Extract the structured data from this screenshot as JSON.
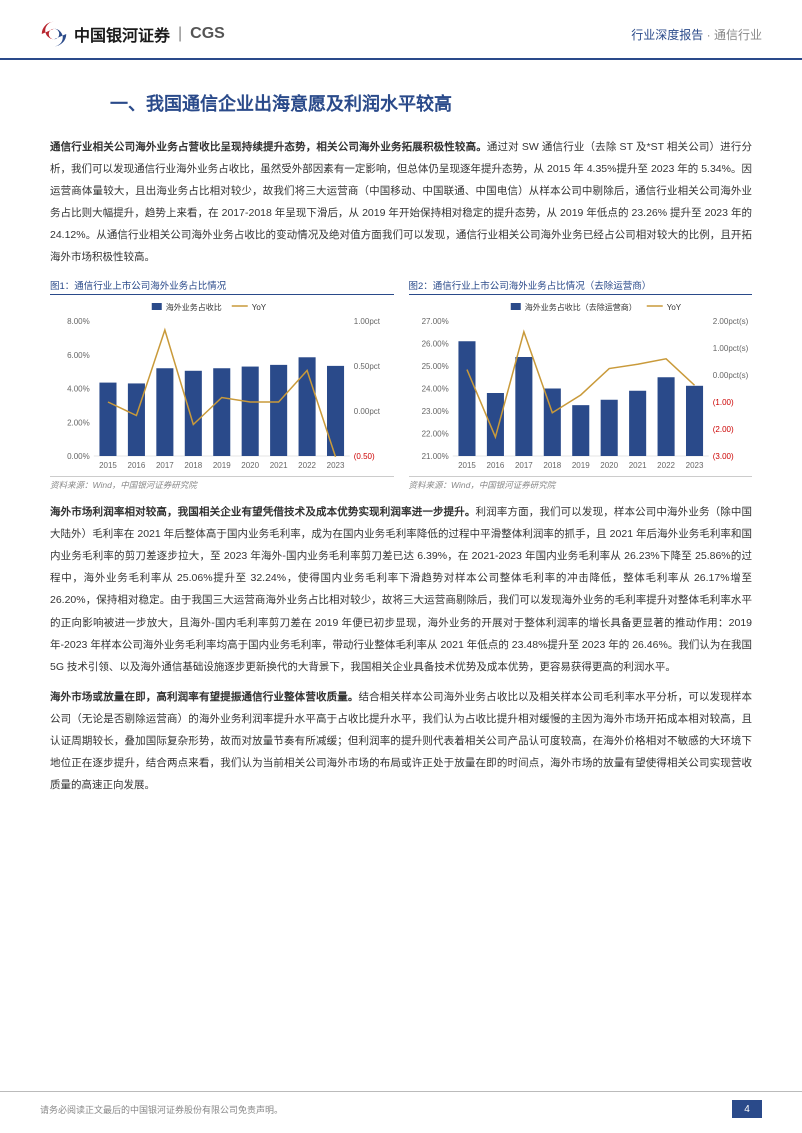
{
  "header": {
    "logo_cn": "中国银河证券",
    "logo_en": "CGS",
    "right_main": "行业深度报告",
    "right_sub": "· 通信行业"
  },
  "section_title": "一、我国通信企业出海意愿及利润水平较高",
  "para1_strong": "通信行业相关公司海外业务占营收比呈现持续提升态势，相关公司海外业务拓展积极性较高。",
  "para1_body": "通过对 SW 通信行业（去除 ST 及*ST 相关公司）进行分析，我们可以发现通信行业海外业务占收比，虽然受外部因素有一定影响，但总体仍呈现逐年提升态势，从 2015 年 4.35%提升至 2023 年的 5.34%。因运营商体量较大，且出海业务占比相对较少，故我们将三大运营商（中国移动、中国联通、中国电信）从样本公司中剔除后，通信行业相关公司海外业务占比则大幅提升，趋势上来看，在 2017-2018 年呈现下滑后，从 2019 年开始保持相对稳定的提升态势，从 2019 年低点的 23.26% 提升至 2023 年的 24.12%。从通信行业相关公司海外业务占收比的变动情况及绝对值方面我们可以发现，通信行业相关公司海外业务已经占公司相对较大的比例，且开拓海外市场积极性较高。",
  "chart1": {
    "title": "图1：通信行业上市公司海外业务占比情况",
    "legend_bar": "海外业务占收比",
    "legend_line": "YoY",
    "categories": [
      "2015",
      "2016",
      "2017",
      "2018",
      "2019",
      "2020",
      "2021",
      "2022",
      "2023"
    ],
    "bar_values": [
      4.35,
      4.3,
      5.2,
      5.05,
      5.2,
      5.3,
      5.4,
      5.85,
      5.34
    ],
    "yoy_values": [
      0.1,
      -0.05,
      0.9,
      -0.15,
      0.15,
      0.1,
      0.1,
      0.45,
      -0.51
    ],
    "y1_min": 0,
    "y1_max": 8,
    "y1_step": 2,
    "y1_fmt": "pct",
    "y2_min": -0.5,
    "y2_max": 1.0,
    "y2_step": 0.5,
    "y2_unit": "pct",
    "bar_color": "#2a4a8a",
    "line_color": "#c99a3a",
    "source": "资料来源：Wind，中国银河证券研究院"
  },
  "chart2": {
    "title": "图2：通信行业上市公司海外业务占比情况（去除运营商）",
    "legend_bar": "海外业务占收比（去除运营商）",
    "legend_line": "YoY",
    "categories": [
      "2015",
      "2016",
      "2017",
      "2018",
      "2019",
      "2020",
      "2021",
      "2022",
      "2023"
    ],
    "bar_values": [
      26.1,
      23.8,
      25.4,
      24.0,
      23.26,
      23.5,
      23.9,
      24.5,
      24.12
    ],
    "yoy_values": [
      0.2,
      -2.3,
      1.6,
      -1.4,
      -0.74,
      0.24,
      0.4,
      0.6,
      -0.38
    ],
    "y1_min": 21,
    "y1_max": 27,
    "y1_step": 1,
    "y1_fmt": "pct",
    "y2_min": -3.0,
    "y2_max": 2.0,
    "y2_step": 1.0,
    "y2_unit": "pct(s)",
    "bar_color": "#2a4a8a",
    "line_color": "#c99a3a",
    "source": "资料来源：Wind，中国银河证券研究院"
  },
  "para2_strong": "海外市场利润率相对较高，我国相关企业有望凭借技术及成本优势实现利润率进一步提升。",
  "para2_body": "利润率方面，我们可以发现，样本公司中海外业务（除中国大陆外）毛利率在 2021 年后整体高于国内业务毛利率，成为在国内业务毛利率降低的过程中平滑整体利润率的抓手，且 2021 年后海外业务毛利率和国内业务毛利率的剪刀差逐步拉大，至 2023 年海外-国内业务毛利率剪刀差已达 6.39%，在 2021-2023 年国内业务毛利率从 26.23%下降至 25.86%的过程中，海外业务毛利率从 25.06%提升至 32.24%，使得国内业务毛利率下滑趋势对样本公司整体毛利率的冲击降低，整体毛利率从 26.17%增至 26.20%，保持相对稳定。由于我国三大运营商海外业务占比相对较少，故将三大运营商剔除后，我们可以发现海外业务的毛利率提升对整体毛利率水平的正向影响被进一步放大，且海外-国内毛利率剪刀差在 2019 年便已初步显现，海外业务的开展对于整体利润率的增长具备更显著的推动作用：2019 年-2023 年样本公司海外业务毛利率均高于国内业务毛利率，带动行业整体毛利率从 2021 年低点的 23.48%提升至 2023 年的 26.46%。我们认为在我国 5G 技术引领、以及海外通信基础设施逐步更新换代的大背景下，我国相关企业具备技术优势及成本优势，更容易获得更高的利润水平。",
  "para3_strong": "海外市场或放量在即，高利润率有望提振通信行业整体营收质量。",
  "para3_body": "结合相关样本公司海外业务占收比以及相关样本公司毛利率水平分析，可以发现样本公司（无论是否剔除运营商）的海外业务利润率提升水平高于占收比提升水平，我们认为占收比提升相对缓慢的主因为海外市场开拓成本相对较高，且认证周期较长，叠加国际复杂形势，故而对放量节奏有所减缓；但利润率的提升则代表着相关公司产品认可度较高，在海外价格相对不敏感的大环境下地位正在逐步提升，结合两点来看，我们认为当前相关公司海外市场的布局或许正处于放量在即的时间点，海外市场的放量有望使得相关公司实现营收质量的高速正向发展。",
  "footer": {
    "disclaimer": "请务必阅读正文最后的中国银河证券股份有限公司免责声明。",
    "page": "4"
  }
}
